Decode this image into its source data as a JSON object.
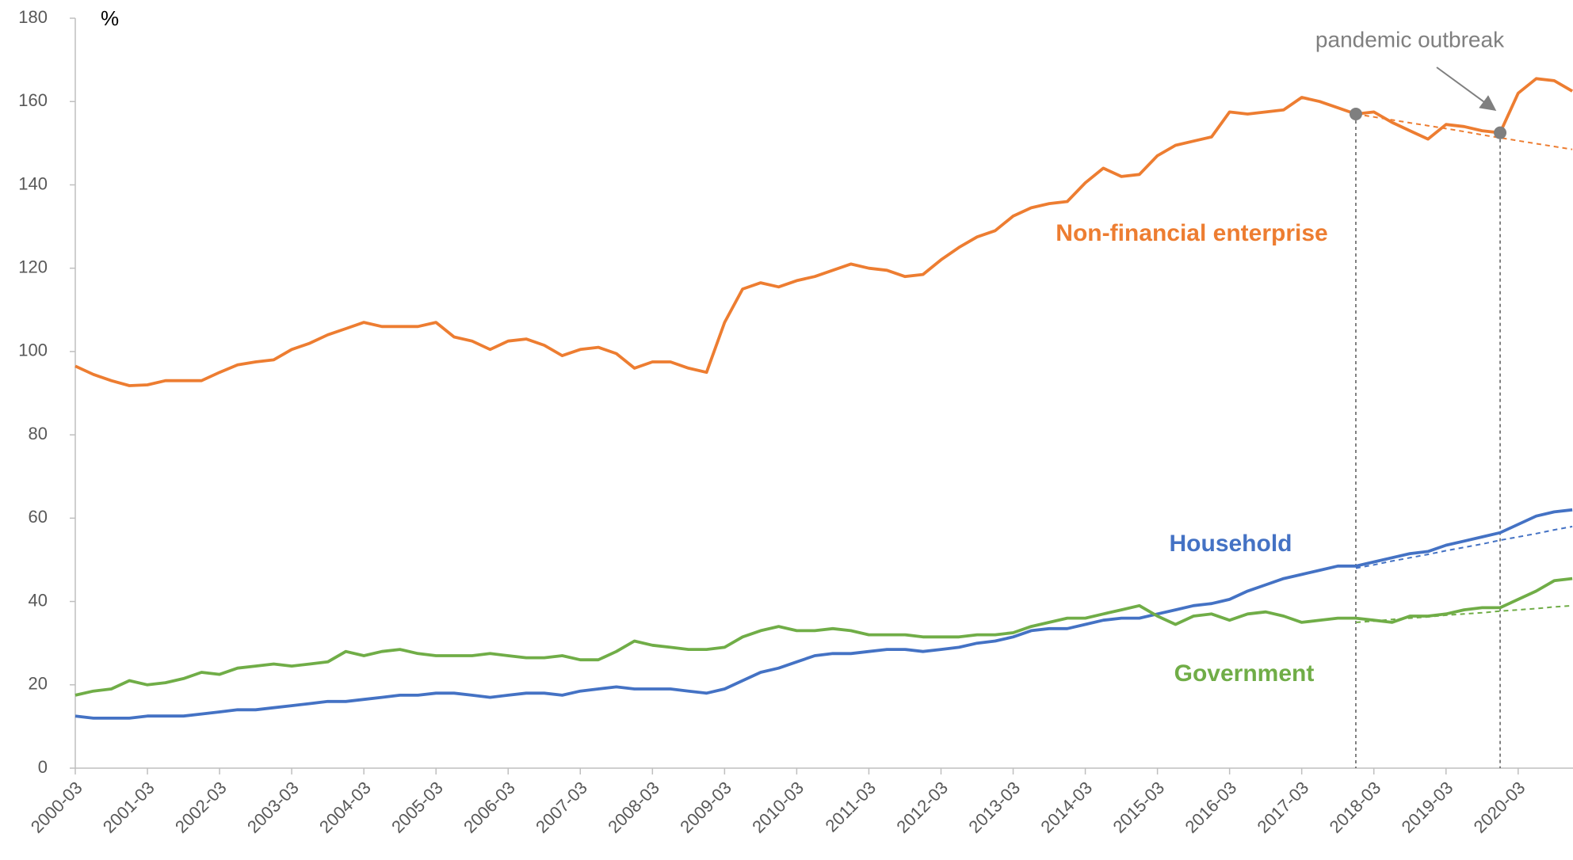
{
  "chart_data": {
    "type": "line",
    "y_label": "%",
    "annotation": "pandemic outbreak",
    "categories": [
      "2000-03",
      null,
      null,
      null,
      "2001-03",
      null,
      null,
      null,
      "2002-03",
      null,
      null,
      null,
      "2003-03",
      null,
      null,
      null,
      "2004-03",
      null,
      null,
      null,
      "2005-03",
      null,
      null,
      null,
      "2006-03",
      null,
      null,
      null,
      "2007-03",
      null,
      null,
      null,
      "2008-03",
      null,
      null,
      null,
      "2009-03",
      null,
      null,
      null,
      "2010-03",
      null,
      null,
      null,
      "2011-03",
      null,
      null,
      null,
      "2012-03",
      null,
      null,
      null,
      "2013-03",
      null,
      null,
      null,
      "2014-03",
      null,
      null,
      null,
      "2015-03",
      null,
      null,
      null,
      "2016-03",
      null,
      null,
      null,
      "2017-03",
      null,
      null,
      null,
      "2018-03",
      null,
      null,
      null,
      "2019-03",
      null,
      null,
      null,
      "2020-03",
      null,
      null,
      null
    ],
    "ylim": [
      0,
      180
    ],
    "yticks": [
      0,
      20,
      40,
      60,
      80,
      100,
      120,
      140,
      160,
      180
    ],
    "grid": false,
    "series": [
      {
        "name": "Non-financial enterprise",
        "color": "#ed7d31",
        "values": [
          96.5,
          94.5,
          93,
          91.8,
          92,
          93,
          93,
          93,
          95,
          96.8,
          97.5,
          98,
          100.5,
          102,
          104,
          105.5,
          107,
          106,
          106,
          106,
          107,
          103.5,
          102.5,
          100.5,
          102.5,
          103,
          101.5,
          99,
          100.5,
          101,
          99.5,
          96,
          97.5,
          97.5,
          96,
          95,
          107,
          115,
          116.5,
          115.5,
          117,
          118,
          119.5,
          121,
          120,
          119.5,
          118,
          118.5,
          122,
          125,
          127.5,
          129,
          132.5,
          134.5,
          135.5,
          136,
          140.5,
          144,
          142,
          142.5,
          147,
          149.5,
          150.5,
          151.5,
          157.5,
          157,
          157.5,
          158,
          161,
          160,
          158.5,
          157,
          157.5,
          155,
          153,
          151,
          154.5,
          154,
          153,
          152.5,
          162,
          165.5,
          165,
          162.5
        ],
        "trend": [
          null,
          null,
          null,
          null,
          null,
          null,
          null,
          null,
          null,
          null,
          null,
          null,
          null,
          null,
          null,
          null,
          null,
          null,
          null,
          null,
          null,
          null,
          null,
          null,
          null,
          null,
          null,
          null,
          null,
          null,
          null,
          null,
          null,
          null,
          null,
          null,
          null,
          null,
          null,
          null,
          null,
          null,
          null,
          null,
          null,
          null,
          null,
          null,
          null,
          null,
          null,
          null,
          null,
          null,
          null,
          null,
          null,
          null,
          null,
          null,
          null,
          null,
          null,
          null,
          null,
          null,
          null,
          null,
          null,
          null,
          null,
          157,
          156.3,
          155.6,
          154.9,
          154.2,
          153.5,
          152.8,
          152,
          151.3,
          150.6,
          149.9,
          149.2,
          148.5
        ],
        "markers": [
          null,
          null,
          null,
          null,
          null,
          null,
          null,
          null,
          null,
          null,
          null,
          null,
          null,
          null,
          null,
          null,
          null,
          null,
          null,
          null,
          null,
          null,
          null,
          null,
          null,
          null,
          null,
          null,
          null,
          null,
          null,
          null,
          null,
          null,
          null,
          null,
          null,
          null,
          null,
          null,
          null,
          null,
          null,
          null,
          null,
          null,
          null,
          null,
          null,
          null,
          null,
          null,
          null,
          null,
          null,
          null,
          null,
          null,
          null,
          null,
          null,
          null,
          null,
          null,
          null,
          null,
          null,
          null,
          null,
          null,
          null,
          157,
          null,
          null,
          null,
          null,
          null,
          null,
          null,
          152.5,
          null,
          null,
          null,
          null
        ]
      },
      {
        "name": "Household",
        "color": "#4472c4",
        "values": [
          12.5,
          12,
          12,
          12,
          12.5,
          12.5,
          12.5,
          13,
          13.5,
          14,
          14,
          14.5,
          15,
          15.5,
          16,
          16,
          16.5,
          17,
          17.5,
          17.5,
          18,
          18,
          17.5,
          17,
          17.5,
          18,
          18,
          17.5,
          18.5,
          19,
          19.5,
          19,
          19,
          19,
          18.5,
          18,
          19,
          21,
          23,
          24,
          25.5,
          27,
          27.5,
          27.5,
          28,
          28.5,
          28.5,
          28,
          28.5,
          29,
          30,
          30.5,
          31.5,
          33,
          33.5,
          33.5,
          34.5,
          35.5,
          36,
          36,
          37,
          38,
          39,
          39.5,
          40.5,
          42.5,
          44,
          45.5,
          46.5,
          47.5,
          48.5,
          48.5,
          49.5,
          50.5,
          51.5,
          52,
          53.5,
          54.5,
          55.5,
          56.5,
          58.5,
          60.5,
          61.5,
          62
        ],
        "trend": [
          null,
          null,
          null,
          null,
          null,
          null,
          null,
          null,
          null,
          null,
          null,
          null,
          null,
          null,
          null,
          null,
          null,
          null,
          null,
          null,
          null,
          null,
          null,
          null,
          null,
          null,
          null,
          null,
          null,
          null,
          null,
          null,
          null,
          null,
          null,
          null,
          null,
          null,
          null,
          null,
          null,
          null,
          null,
          null,
          null,
          null,
          null,
          null,
          null,
          null,
          null,
          null,
          null,
          null,
          null,
          null,
          null,
          null,
          null,
          null,
          null,
          null,
          null,
          null,
          null,
          null,
          null,
          null,
          null,
          null,
          null,
          48,
          48.8,
          49.7,
          50.5,
          51.3,
          52.2,
          53,
          53.8,
          54.7,
          55.5,
          56.3,
          57.2,
          58
        ]
      },
      {
        "name": "Government",
        "color": "#70ad47",
        "values": [
          17.5,
          18.5,
          19,
          21,
          20,
          20.5,
          21.5,
          23,
          22.5,
          24,
          24.5,
          25,
          24.5,
          25,
          25.5,
          28,
          27,
          28,
          28.5,
          27.5,
          27,
          27,
          27,
          27.5,
          27,
          26.5,
          26.5,
          27,
          26,
          26,
          28,
          30.5,
          29.5,
          29,
          28.5,
          28.5,
          29,
          31.5,
          33,
          34,
          33,
          33,
          33.5,
          33,
          32,
          32,
          32,
          31.5,
          31.5,
          31.5,
          32,
          32,
          32.5,
          34,
          35,
          36,
          36,
          37,
          38,
          39,
          36.5,
          34.5,
          36.5,
          37,
          35.5,
          37,
          37.5,
          36.5,
          35,
          35.5,
          36,
          36,
          35.5,
          35,
          36.5,
          36.5,
          37,
          38,
          38.5,
          38.5,
          40.5,
          42.5,
          45,
          45.5
        ],
        "trend": [
          null,
          null,
          null,
          null,
          null,
          null,
          null,
          null,
          null,
          null,
          null,
          null,
          null,
          null,
          null,
          null,
          null,
          null,
          null,
          null,
          null,
          null,
          null,
          null,
          null,
          null,
          null,
          null,
          null,
          null,
          null,
          null,
          null,
          null,
          null,
          null,
          null,
          null,
          null,
          null,
          null,
          null,
          null,
          null,
          null,
          null,
          null,
          null,
          null,
          null,
          null,
          null,
          null,
          null,
          null,
          null,
          null,
          null,
          null,
          null,
          null,
          null,
          null,
          null,
          null,
          null,
          null,
          null,
          null,
          null,
          null,
          35,
          35.3,
          35.7,
          36,
          36.3,
          36.7,
          37,
          37.3,
          37.7,
          38,
          38.3,
          38.7,
          39
        ]
      }
    ]
  }
}
